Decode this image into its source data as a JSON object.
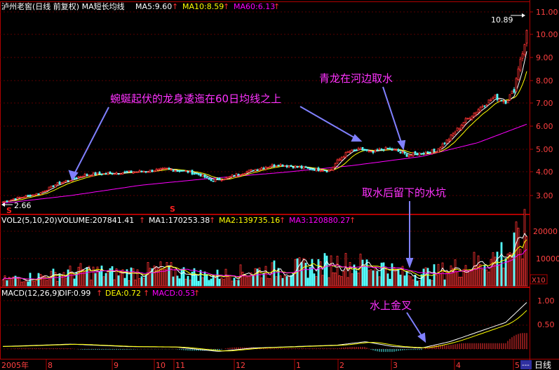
{
  "price_panel": {
    "title": "泸州老窖(日线 前复权) MA短长均线",
    "ma5_label": "MA5:9.60",
    "ma10_label": "MA10:8.59",
    "ma60_label": "MA60:6.13",
    "y_ticks": [
      "11.00",
      "10.00",
      "9.00",
      "8.00",
      "7.00",
      "6.00",
      "5.00",
      "4.00",
      "3.00"
    ],
    "high_callout": "10.89",
    "low_callout": "2.66",
    "signal_marker_1": "S",
    "signal_marker_2": "S",
    "annotation_1": "蜿蜒起伏的龙身逶迤在60日均线之上",
    "annotation_2": "青龙在河边取水",
    "annotation_3": "取水后留下的水坑",
    "colors": {
      "ma5": "#ffffff",
      "ma10": "#ffff00",
      "ma60": "#ff00ff",
      "up": "#ff3232",
      "down": "#54ffff",
      "annotation": "#ff00ff"
    }
  },
  "volume_panel": {
    "title": "VOL2(5,10,20)",
    "volume_label": "VOLUME:207841.41",
    "ma1_label": "MA1:170253.38",
    "ma2_label": "MA2:139735.16",
    "ma3_label": "MA3:120880.27",
    "y_ticks": [
      "20000",
      "10000"
    ],
    "unit_label": "X10"
  },
  "macd_panel": {
    "title": "MACD(12,26,9)",
    "dif_label": "DIF:0.99",
    "dea_label": "DEA:0.72",
    "macd_label": "MACD:0.53",
    "y_ticks": [
      "1.00",
      "0.50"
    ],
    "annotation": "水上金叉"
  },
  "time_axis": {
    "labels": [
      "2005年",
      "8",
      "9",
      "10",
      "11",
      "12",
      "1",
      "2",
      "3",
      "4",
      "5"
    ],
    "period_label": "日线"
  },
  "chart_data": {
    "type": "candlestick",
    "title": "泸州老窖(日线 前复权)",
    "ylim": [
      2.4,
      11.2
    ],
    "close_keypoints": [
      [
        0,
        2.7
      ],
      [
        25,
        2.9
      ],
      [
        55,
        3.1
      ],
      [
        80,
        3.5
      ],
      [
        100,
        3.7
      ],
      [
        120,
        3.9
      ],
      [
        145,
        3.95
      ],
      [
        170,
        4.0
      ],
      [
        205,
        4.05
      ],
      [
        235,
        4.15
      ],
      [
        265,
        4.05
      ],
      [
        285,
        3.9
      ],
      [
        300,
        3.65
      ],
      [
        320,
        3.75
      ],
      [
        340,
        3.95
      ],
      [
        370,
        4.2
      ],
      [
        395,
        4.35
      ],
      [
        420,
        4.25
      ],
      [
        445,
        4.15
      ],
      [
        470,
        4.1
      ],
      [
        480,
        4.5
      ],
      [
        495,
        4.9
      ],
      [
        515,
        5.0
      ],
      [
        530,
        4.85
      ],
      [
        545,
        5.05
      ],
      [
        565,
        4.95
      ],
      [
        580,
        4.75
      ],
      [
        600,
        4.85
      ],
      [
        620,
        4.95
      ],
      [
        640,
        5.5
      ],
      [
        660,
        6.2
      ],
      [
        675,
        6.6
      ],
      [
        690,
        7.0
      ],
      [
        705,
        7.3
      ],
      [
        720,
        7.1
      ],
      [
        732,
        7.6
      ],
      [
        740,
        8.9
      ],
      [
        748,
        9.6
      ],
      [
        752,
        10.8
      ]
    ],
    "volume_keypoints": [
      [
        0,
        2500
      ],
      [
        60,
        4000
      ],
      [
        120,
        6000
      ],
      [
        170,
        5000
      ],
      [
        230,
        6500
      ],
      [
        300,
        4000
      ],
      [
        360,
        6000
      ],
      [
        420,
        7000
      ],
      [
        480,
        9000
      ],
      [
        540,
        8000
      ],
      [
        580,
        4500
      ],
      [
        620,
        5500
      ],
      [
        660,
        8000
      ],
      [
        700,
        11000
      ],
      [
        730,
        15000
      ],
      [
        752,
        20800
      ]
    ],
    "macd_keypoints": [
      [
        0,
        0.05
      ],
      [
        100,
        0.1
      ],
      [
        180,
        0.05
      ],
      [
        250,
        0.04
      ],
      [
        310,
        -0.05
      ],
      [
        360,
        0.02
      ],
      [
        420,
        0.05
      ],
      [
        480,
        0.08
      ],
      [
        520,
        0.15
      ],
      [
        560,
        0.05
      ],
      [
        600,
        0.02
      ],
      [
        640,
        0.15
      ],
      [
        680,
        0.35
      ],
      [
        720,
        0.55
      ],
      [
        752,
        0.99
      ]
    ],
    "ma60_keypoints": [
      [
        0,
        2.65
      ],
      [
        100,
        3.0
      ],
      [
        200,
        3.45
      ],
      [
        300,
        3.75
      ],
      [
        400,
        4.0
      ],
      [
        500,
        4.3
      ],
      [
        600,
        4.7
      ],
      [
        680,
        5.3
      ],
      [
        752,
        6.13
      ]
    ]
  }
}
